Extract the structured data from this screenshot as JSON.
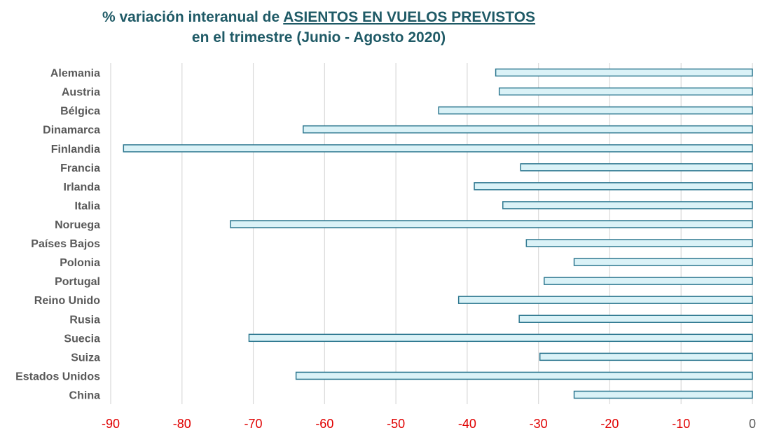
{
  "title": {
    "prefix": "% variación interanual de ",
    "emphasis": "ASIENTOS EN VUELOS PREVISTOS",
    "line2": "en el trimestre (Junio - Agosto 2020)"
  },
  "colors": {
    "title": "#1f5a66",
    "bar_fill": "#daf2f7",
    "bar_stroke": "#2e7890",
    "grid": "#d9d9d9",
    "negative_tick": "#e00000",
    "zero_tick": "#595959",
    "category_label": "#595959"
  },
  "chart_data": {
    "type": "bar",
    "orientation": "horizontal",
    "categories": [
      "Alemania",
      "Austria",
      "Bélgica",
      "Dinamarca",
      "Finlandia",
      "Francia",
      "Irlanda",
      "Italia",
      "Noruega",
      "Países Bajos",
      "Polonia",
      "Portugal",
      "Reino Unido",
      "Rusia",
      "Suecia",
      "Suiza",
      "Estados Unidos",
      "China"
    ],
    "values": [
      -36,
      -35.5,
      -44,
      -63,
      -88.2,
      -32.5,
      -39,
      -35,
      -73.2,
      -31.7,
      -25,
      -29.2,
      -41.2,
      -32.7,
      -70.6,
      -29.8,
      -64,
      -25
    ],
    "xlim": [
      -90,
      0
    ],
    "xticks": [
      "-90",
      "-80",
      "-70",
      "-60",
      "-50",
      "-40",
      "-30",
      "-20",
      "-10",
      "0"
    ],
    "grid": true,
    "legend": "none"
  }
}
